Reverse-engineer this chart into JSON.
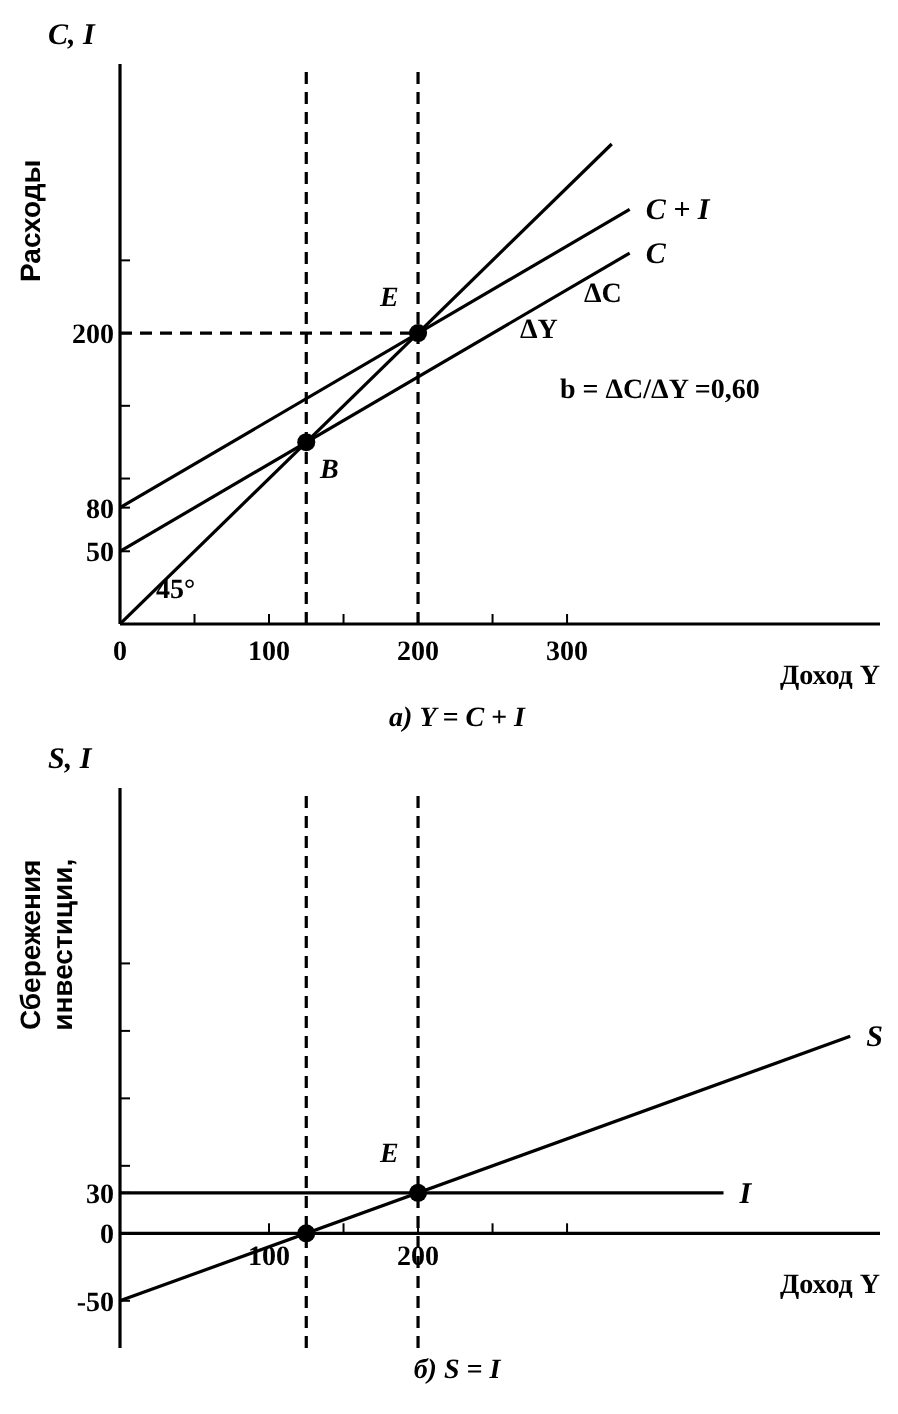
{
  "chart_data": [
    {
      "type": "line",
      "title": "а) Y = C + I",
      "xlabel": "Доход  Y",
      "ylabel": "Расходы",
      "xlim": [
        0,
        510
      ],
      "ylim": [
        0,
        385
      ],
      "xticks": [
        0,
        {
          "value": 50,
          "label": null
        },
        100,
        {
          "value": 150,
          "label": null
        },
        200,
        {
          "value": 250,
          "label": null
        },
        300
      ],
      "yticks": [
        50,
        80,
        {
          "value": 100,
          "label": null
        },
        {
          "value": 150,
          "label": null
        },
        200,
        {
          "value": 250,
          "label": null
        }
      ],
      "series": [
        {
          "x": [
            0,
            330
          ],
          "values": [
            0,
            330
          ],
          "color": "#000000"
        },
        {
          "name": "C + I",
          "x": [
            0,
            342
          ],
          "values": [
            80,
            285
          ],
          "color": "#000000"
        },
        {
          "name": "C",
          "x": [
            0,
            342
          ],
          "values": [
            50,
            255
          ],
          "color": "#000000"
        },
        {
          "x": [
            0,
            200
          ],
          "values": [
            200,
            200
          ],
          "color": "#000000",
          "line_style": "dashed"
        },
        {
          "type": "scatter",
          "x": [
            125,
            200
          ],
          "values": [
            125,
            200
          ],
          "color": "#000000",
          "marker": "circle"
        }
      ],
      "ref_lines": [
        {
          "axis": "x",
          "value": 125,
          "line_style": "dashed"
        },
        {
          "axis": "x",
          "value": 200,
          "line_style": "dashed"
        }
      ],
      "annotations": [
        "C, I",
        "E",
        "B",
        "45°",
        "ΔC",
        "ΔY",
        "b = ΔC/ΔY =0,60"
      ]
    },
    {
      "type": "line",
      "title": "б) S = I",
      "xlabel": "Доход  Y",
      "ylabel": "Сбережения инвестиции,",
      "xlim": [
        0,
        510
      ],
      "ylim": [
        -85,
        330
      ],
      "xticks": [
        100,
        {
          "value": 150,
          "label": null
        },
        200,
        {
          "value": 250,
          "label": null
        },
        {
          "value": 300,
          "label": null
        }
      ],
      "yticks": [
        -50,
        0,
        30,
        {
          "value": 50,
          "label": null
        },
        {
          "value": 100,
          "label": null
        },
        {
          "value": 150,
          "label": null
        },
        {
          "value": 200,
          "label": null
        }
      ],
      "series": [
        {
          "name": "S",
          "x": [
            0,
            490
          ],
          "values": [
            -50,
            146
          ],
          "color": "#000000"
        },
        {
          "name": "I",
          "x": [
            0,
            405
          ],
          "values": [
            30,
            30
          ],
          "color": "#000000"
        },
        {
          "type": "scatter",
          "x": [
            125,
            200
          ],
          "values": [
            0,
            30
          ],
          "color": "#000000",
          "marker": "circle"
        }
      ],
      "ref_lines": [
        {
          "axis": "x",
          "value": 125,
          "line_style": "dashed"
        },
        {
          "axis": "x",
          "value": 200,
          "line_style": "dashed"
        }
      ],
      "annotations": [
        "S, I",
        "E"
      ]
    }
  ]
}
